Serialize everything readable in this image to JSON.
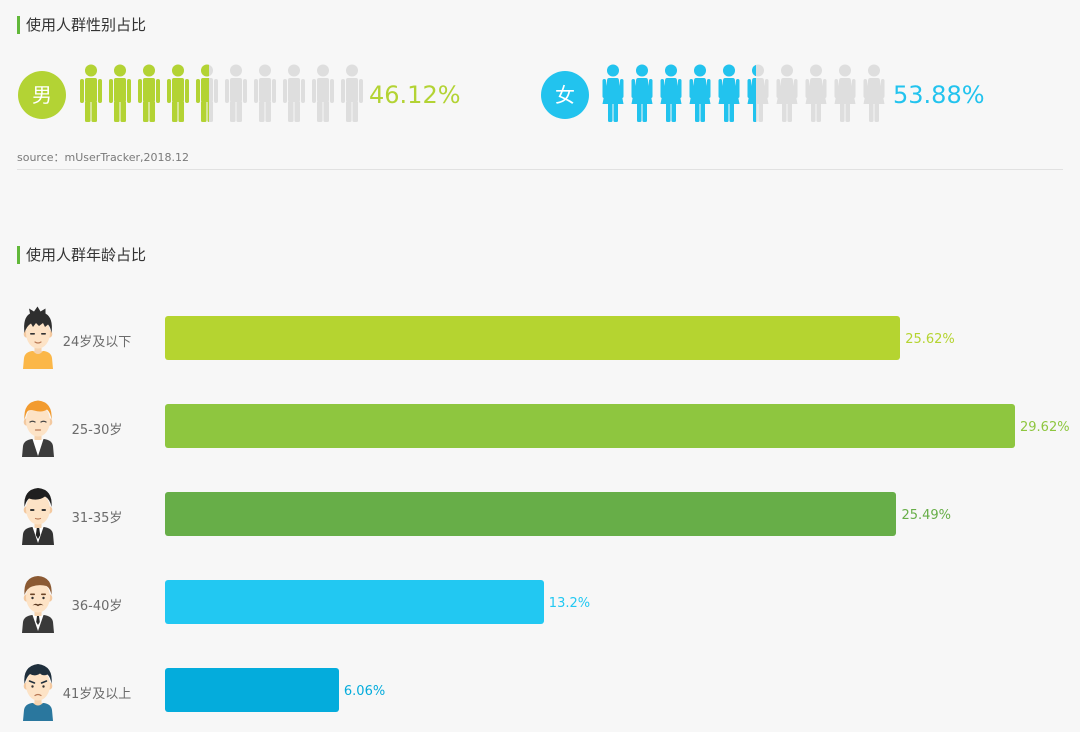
{
  "theme": {
    "background": "#f7f7f7",
    "title_accent": "#62b83a"
  },
  "chart_data": [
    {
      "type": "pie",
      "title": "使用人群性别占比",
      "categories": [
        "男",
        "女"
      ],
      "values": [
        46.12,
        53.88
      ],
      "data_labels": [
        "46.12%",
        "53.88%"
      ],
      "colors": [
        "#b3d334",
        "#22c3ee"
      ],
      "inactive_color": "#dedede",
      "icons": [
        "male-person-icon",
        "female-person-icon"
      ],
      "source": "source：mUserTracker,2018.12"
    },
    {
      "type": "bar",
      "orientation": "horizontal",
      "title": "使用人群年龄占比",
      "categories": [
        "24岁及以下",
        "25-30岁",
        "31-35岁",
        "36-40岁",
        "41岁及以上"
      ],
      "values": [
        25.62,
        29.62,
        25.49,
        13.2,
        6.06
      ],
      "data_labels": [
        "25.62%",
        "29.62%",
        "25.49%",
        "13.2%",
        "6.06%"
      ],
      "colors": [
        "#b5d430",
        "#8ec63f",
        "#67ae48",
        "#22c8f2",
        "#04acdc"
      ],
      "avatars": [
        "young-man-avatar-icon",
        "orange-hair-man-avatar-icon",
        "suit-man-avatar-icon",
        "mustache-man-avatar-icon",
        "casual-man-avatar-icon"
      ]
    }
  ]
}
